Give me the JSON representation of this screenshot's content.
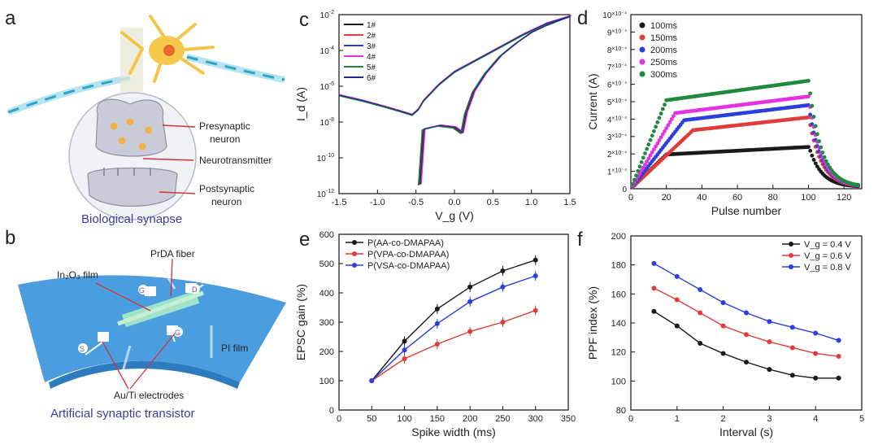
{
  "panels": {
    "a": {
      "label": "a",
      "caption": "Biological synapse",
      "annotations": [
        "Presynaptic",
        "neuron",
        "Neurotransmitter",
        "Postsynaptic",
        "neuron"
      ]
    },
    "b": {
      "label": "b",
      "caption": "Artificial synaptic transistor",
      "annotations": [
        "PrDA fiber",
        "In₂O₃ film",
        "PI film",
        "Au/Ti electrodes"
      ],
      "electrode_letters": [
        "G",
        "D",
        "S",
        "G"
      ]
    }
  },
  "colors": {
    "black": "#1a1a1a",
    "red": "#e23b3b",
    "blue": "#2b3fe0",
    "magenta": "#e232e2",
    "green": "#1f8a3c",
    "darkgreen": "#0c5c2a",
    "navy": "#1d2a8a",
    "caption": "#3a3f9a",
    "substrate": "#4a9ee0"
  },
  "chart_data": [
    {
      "panel": "c",
      "type": "line",
      "xlabel": "V_g (V)",
      "ylabel": "I_d (A)",
      "yscale": "log",
      "xlim": [
        -1.5,
        1.5
      ],
      "ylim_exp": [
        -12,
        -2
      ],
      "xticks": [
        "-1.5",
        "-1.0",
        "-0.5",
        "0.0",
        "0.5",
        "1.0",
        "1.5"
      ],
      "yticks_exp": [
        -12,
        -10,
        -8,
        -6,
        -4,
        -2
      ],
      "series": [
        {
          "name": "1#",
          "color": "#1a1a1a"
        },
        {
          "name": "2#",
          "color": "#e23b3b"
        },
        {
          "name": "3#",
          "color": "#2b3fe0"
        },
        {
          "name": "4#",
          "color": "#e232e2"
        },
        {
          "name": "5#",
          "color": "#1f8a3c"
        },
        {
          "name": "6#",
          "color": "#1d2a8a"
        }
      ],
      "forward_sweep": {
        "v": [
          -1.5,
          -1.2,
          -0.9,
          -0.7,
          -0.55,
          -0.47,
          -0.4,
          -0.2,
          0.0,
          0.3,
          0.6,
          0.9,
          1.2,
          1.5
        ],
        "log_i": [
          -6.5,
          -6.8,
          -7.15,
          -7.4,
          -7.6,
          -7.3,
          -6.8,
          -5.9,
          -5.2,
          -4.5,
          -3.8,
          -3.1,
          -2.5,
          -2.1
        ]
      },
      "reverse_sweep": {
        "v": [
          1.5,
          1.2,
          1.0,
          0.8,
          0.6,
          0.4,
          0.25,
          0.15,
          0.1,
          0.0,
          -0.2,
          -0.4,
          -0.45
        ],
        "log_i": [
          -2.1,
          -2.6,
          -3.0,
          -3.6,
          -4.3,
          -5.3,
          -6.3,
          -7.5,
          -8.6,
          -8.3,
          -8.2,
          -8.4,
          -11.5
        ]
      }
    },
    {
      "panel": "d",
      "type": "scatter",
      "xlabel": "Pulse number",
      "ylabel": "Current (A)",
      "xlim": [
        0,
        130
      ],
      "ylim": [
        0,
        0.001
      ],
      "xticks": [
        0,
        20,
        40,
        60,
        80,
        100,
        120
      ],
      "yticks": [
        0,
        1,
        2,
        3,
        4,
        5,
        6,
        7,
        8,
        9,
        10
      ],
      "ytick_unit": "×10⁻⁴",
      "pulses_on": 100,
      "pulses_total": 128,
      "series": [
        {
          "name": "100ms",
          "color": "#1a1a1a",
          "plateau": 0.00024,
          "start_slope_end": 20
        },
        {
          "name": "150ms",
          "color": "#e23b3b",
          "plateau": 0.00041,
          "start_slope_end": 35
        },
        {
          "name": "200ms",
          "color": "#2b3fe0",
          "plateau": 0.00048,
          "start_slope_end": 30
        },
        {
          "name": "250ms",
          "color": "#e232e2",
          "plateau": 0.00053,
          "start_slope_end": 25
        },
        {
          "name": "300ms",
          "color": "#1f8a3c",
          "plateau": 0.00062,
          "start_slope_end": 20
        }
      ]
    },
    {
      "panel": "e",
      "type": "line",
      "xlabel": "Spike width (ms)",
      "ylabel": "EPSC gain (%)",
      "xlim": [
        0,
        350
      ],
      "ylim": [
        0,
        600
      ],
      "xticks": [
        0,
        50,
        100,
        150,
        200,
        250,
        300,
        350
      ],
      "yticks": [
        0,
        100,
        200,
        300,
        400,
        500,
        600
      ],
      "x": [
        50,
        100,
        150,
        200,
        250,
        300
      ],
      "series": [
        {
          "name": "P(AA-co-DMAPAA)",
          "color": "#1a1a1a",
          "values": [
            100,
            235,
            345,
            420,
            475,
            512
          ]
        },
        {
          "name": "P(VPA-co-DMAPAA)",
          "color": "#e23b3b",
          "values": [
            100,
            175,
            225,
            268,
            300,
            340
          ]
        },
        {
          "name": "P(VSA-co-DMAPAA)",
          "color": "#2b3fe0",
          "values": [
            100,
            205,
            295,
            370,
            420,
            458
          ]
        }
      ]
    },
    {
      "panel": "f",
      "type": "line",
      "xlabel": "Interval (s)",
      "ylabel": "PPF index (%)",
      "xlim": [
        0,
        5
      ],
      "ylim": [
        80,
        200
      ],
      "xticks": [
        0,
        1,
        2,
        3,
        4,
        5
      ],
      "yticks": [
        80,
        100,
        120,
        140,
        160,
        180,
        200
      ],
      "x": [
        0.5,
        1.0,
        1.5,
        2.0,
        2.5,
        3.0,
        3.5,
        4.0,
        4.5
      ],
      "series": [
        {
          "name": "V_g = 0.4 V",
          "color": "#1a1a1a",
          "values": [
            148,
            138,
            126,
            119,
            113,
            108,
            104,
            102,
            102
          ]
        },
        {
          "name": "V_g = 0.6 V",
          "color": "#e23b3b",
          "values": [
            164,
            156,
            147,
            138,
            132,
            127,
            123,
            119,
            117
          ]
        },
        {
          "name": "V_g = 0.8 V",
          "color": "#2b3fe0",
          "values": [
            181,
            172,
            163,
            154,
            147,
            141,
            137,
            133,
            128
          ]
        }
      ]
    }
  ]
}
